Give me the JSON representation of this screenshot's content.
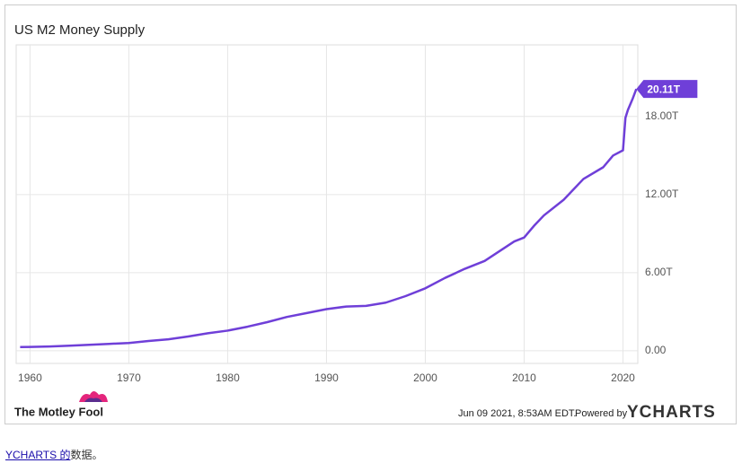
{
  "chart_data": {
    "type": "line",
    "title": "US M2 Money Supply",
    "x": [
      1959,
      1960,
      1962,
      1964,
      1966,
      1968,
      1970,
      1972,
      1974,
      1976,
      1978,
      1980,
      1982,
      1984,
      1986,
      1988,
      1990,
      1992,
      1994,
      1996,
      1998,
      2000,
      2002,
      2004,
      2006,
      2008,
      2009,
      2010,
      2011,
      2012,
      2014,
      2016,
      2018,
      2019,
      2020,
      2020.25,
      2020.5,
      2021,
      2021.35
    ],
    "series": [
      {
        "name": "US M2 Money Supply",
        "color": "#6f3fd8",
        "values": [
          0.29,
          0.3,
          0.33,
          0.39,
          0.46,
          0.53,
          0.6,
          0.75,
          0.88,
          1.1,
          1.35,
          1.55,
          1.85,
          2.2,
          2.6,
          2.9,
          3.2,
          3.4,
          3.45,
          3.7,
          4.2,
          4.8,
          5.6,
          6.3,
          6.9,
          7.9,
          8.4,
          8.7,
          9.6,
          10.4,
          11.6,
          13.2,
          14.1,
          15.0,
          15.4,
          17.9,
          18.5,
          19.4,
          20.11
        ],
        "last_value_label": "20.11T"
      }
    ],
    "xlim": [
      1958.6,
      2021.5
    ],
    "xticks": [
      1960,
      1970,
      1980,
      1990,
      2000,
      2010,
      2020
    ],
    "ylim": [
      -0.97,
      23.5
    ],
    "yticks": [
      {
        "value": 0,
        "label": "0.00"
      },
      {
        "value": 6,
        "label": "6.00T"
      },
      {
        "value": 12,
        "label": "12.00T"
      },
      {
        "value": 18,
        "label": "18.00T"
      }
    ],
    "grid": true
  },
  "branding": {
    "left_logo": "The Motley Fool",
    "timestamp": "Jun 09 2021, 8:53AM EDT.",
    "powered_by": "Powered by",
    "right_logo": "YCHARTS"
  },
  "attribution": {
    "link": "YCHARTS 的",
    "suffix": "数据。"
  }
}
